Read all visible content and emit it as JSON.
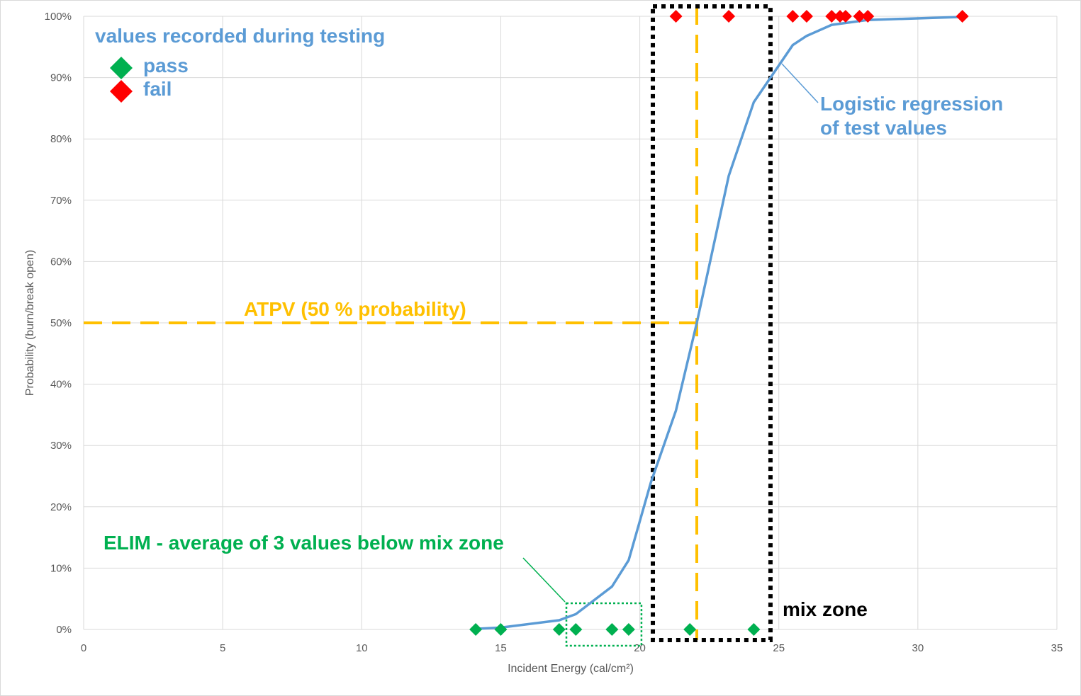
{
  "chart_data": {
    "type": "scatter",
    "title": "",
    "xlabel": "Incident Energy (cal/cm²)",
    "ylabel": "Probability (burn/break open)",
    "xlim": [
      0,
      35
    ],
    "ylim": [
      0,
      100
    ],
    "x_ticks": [
      0,
      5,
      10,
      15,
      20,
      25,
      30,
      35
    ],
    "y_ticks": [
      "0%",
      "10%",
      "20%",
      "30%",
      "40%",
      "50%",
      "60%",
      "70%",
      "80%",
      "90%",
      "100%"
    ],
    "grid": true,
    "legend": {
      "title": "values recorded during testing",
      "placement": "top-left",
      "entries": [
        "pass",
        "fail"
      ]
    },
    "series": [
      {
        "name": "pass",
        "color": "#00b050",
        "marker": "diamond",
        "points": [
          [
            14.1,
            0
          ],
          [
            15.0,
            0
          ],
          [
            17.1,
            0
          ],
          [
            17.7,
            0
          ],
          [
            19.0,
            0
          ],
          [
            19.6,
            0
          ],
          [
            21.8,
            0
          ],
          [
            24.1,
            0
          ]
        ]
      },
      {
        "name": "fail",
        "color": "#ff0000",
        "marker": "diamond",
        "points": [
          [
            21.3,
            100
          ],
          [
            23.2,
            100
          ],
          [
            25.5,
            100
          ],
          [
            26.0,
            100
          ],
          [
            26.9,
            100
          ],
          [
            27.2,
            100
          ],
          [
            27.4,
            100
          ],
          [
            27.9,
            100
          ],
          [
            28.2,
            100
          ],
          [
            31.6,
            100
          ]
        ]
      },
      {
        "name": "Logistic regression",
        "color": "#5b9bd5",
        "type": "line",
        "points": [
          [
            14.1,
            0.1
          ],
          [
            15.0,
            0.3
          ],
          [
            17.1,
            1.5
          ],
          [
            17.7,
            2.5
          ],
          [
            19.0,
            7
          ],
          [
            19.6,
            11.3
          ],
          [
            20.4,
            24
          ],
          [
            21.3,
            35.7
          ],
          [
            22.05,
            50
          ],
          [
            23.2,
            74
          ],
          [
            24.1,
            86
          ],
          [
            25.5,
            95.3
          ],
          [
            26.0,
            96.8
          ],
          [
            26.9,
            98.6
          ],
          [
            28.2,
            99.4
          ],
          [
            31.6,
            99.9
          ]
        ]
      }
    ],
    "atpv": {
      "label": "ATPV (50 % probability)",
      "x": 22.05,
      "y": 50,
      "color": "#ffc000"
    },
    "mix_zone": {
      "label": "mix zone",
      "x_range": [
        20.47,
        24.7
      ]
    },
    "elim": {
      "label": "ELIM - average of 3 values below mix zone",
      "x_range": [
        17.36,
        20.06
      ],
      "color": "#00b050"
    },
    "annotations": {
      "regression_line1": "Logistic regression",
      "regression_line2": "of test values"
    }
  }
}
